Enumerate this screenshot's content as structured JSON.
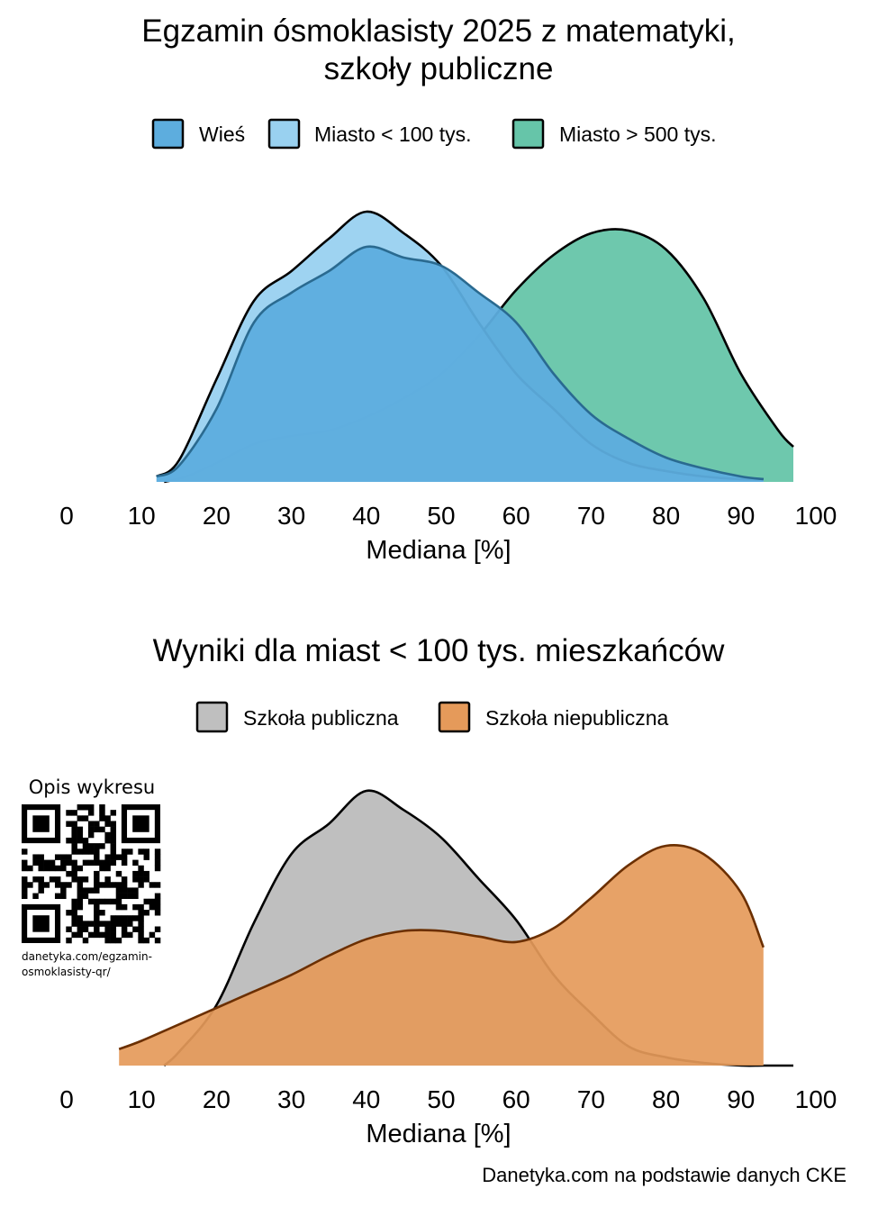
{
  "chart_data": [
    {
      "type": "area",
      "title_lines": [
        "Egzamin ósmoklasisty 2025 z matematyki,",
        "szkoły publiczne"
      ],
      "xlabel": "Mediana [%]",
      "ylabel": "",
      "xlim": [
        0,
        100
      ],
      "x_ticks": [
        "0",
        "10",
        "20",
        "30",
        "40",
        "50",
        "60",
        "70",
        "80",
        "90",
        "100"
      ],
      "y_axis_shown": false,
      "grid": false,
      "legend_position": "top",
      "series": [
        {
          "name": "Miasto > 500 tys.",
          "color": "#66c5a9",
          "x": [
            13,
            16,
            20,
            25,
            30,
            35,
            40,
            45,
            50,
            55,
            60,
            65,
            70,
            75,
            80,
            85,
            90,
            95,
            97
          ],
          "values": [
            0.0,
            0.02,
            0.07,
            0.14,
            0.17,
            0.19,
            0.24,
            0.31,
            0.4,
            0.54,
            0.71,
            0.84,
            0.92,
            0.93,
            0.86,
            0.68,
            0.4,
            0.19,
            0.13
          ]
        },
        {
          "name": "Miasto < 100 tys.",
          "color": "#99d1f0",
          "x": [
            12,
            15,
            20,
            25,
            30,
            35,
            40,
            45,
            50,
            55,
            60,
            65,
            70,
            75,
            80,
            85,
            90,
            93
          ],
          "values": [
            0.02,
            0.08,
            0.38,
            0.67,
            0.78,
            0.9,
            1.0,
            0.92,
            0.8,
            0.59,
            0.4,
            0.27,
            0.14,
            0.07,
            0.04,
            0.02,
            0.01,
            0.01
          ]
        },
        {
          "name": "Wieś",
          "color": "#5dadde",
          "x": [
            12,
            15,
            20,
            25,
            30,
            35,
            40,
            45,
            50,
            55,
            60,
            65,
            70,
            75,
            80,
            85,
            90,
            93
          ],
          "values": [
            0.02,
            0.06,
            0.27,
            0.59,
            0.7,
            0.78,
            0.87,
            0.83,
            0.8,
            0.7,
            0.59,
            0.4,
            0.25,
            0.16,
            0.09,
            0.05,
            0.02,
            0.01
          ]
        }
      ]
    },
    {
      "type": "area",
      "title": "Wyniki dla miast < 100 tys. mieszkańców",
      "xlabel": "Mediana [%]",
      "ylabel": "",
      "xlim": [
        0,
        100
      ],
      "x_ticks": [
        "0",
        "10",
        "20",
        "30",
        "40",
        "50",
        "60",
        "70",
        "80",
        "90",
        "100"
      ],
      "y_axis_shown": false,
      "grid": false,
      "legend_position": "top",
      "series": [
        {
          "name": "Szkoła publiczna",
          "color": "#bfbfbf",
          "x": [
            13,
            15,
            20,
            25,
            30,
            35,
            40,
            45,
            50,
            55,
            60,
            65,
            70,
            75,
            80,
            85,
            90,
            93,
            97
          ],
          "values": [
            0.0,
            0.05,
            0.22,
            0.52,
            0.77,
            0.88,
            1.0,
            0.93,
            0.83,
            0.68,
            0.53,
            0.33,
            0.19,
            0.07,
            0.03,
            0.01,
            0.0,
            0.0,
            0.0
          ]
        },
        {
          "name": "Szkoła niepubliczna",
          "color": "#e59a5a",
          "x": [
            7,
            10,
            15,
            20,
            25,
            30,
            35,
            40,
            45,
            50,
            55,
            60,
            65,
            70,
            75,
            80,
            85,
            90,
            93
          ],
          "values": [
            0.06,
            0.09,
            0.15,
            0.21,
            0.27,
            0.33,
            0.4,
            0.46,
            0.49,
            0.49,
            0.47,
            0.45,
            0.5,
            0.61,
            0.73,
            0.8,
            0.77,
            0.63,
            0.43
          ]
        }
      ]
    }
  ],
  "qr": {
    "label": "Opis wykresu",
    "url_line1": "danetyka.com/egzamin-",
    "url_line2": "osmoklasisty-qr/"
  },
  "caption": "Danetyka.com na podstawie danych CKE"
}
